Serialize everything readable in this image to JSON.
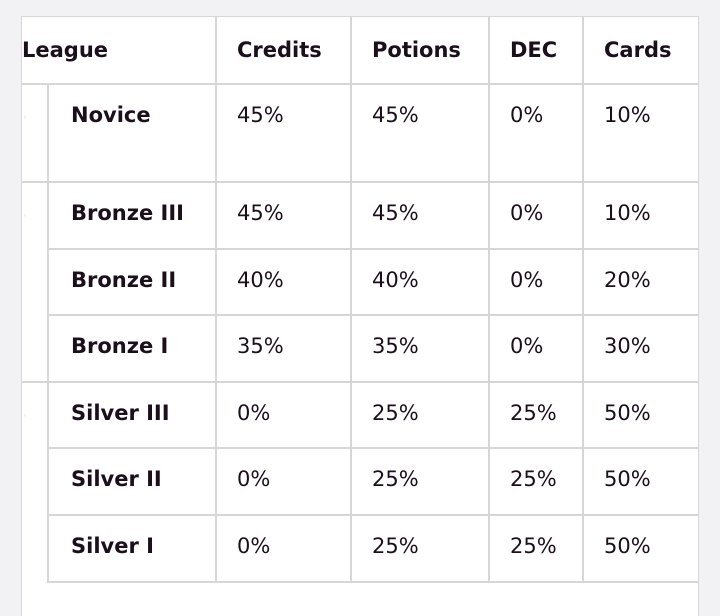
{
  "table": {
    "headers": {
      "league": "League",
      "credits": "Credits",
      "potions": "Potions",
      "dec": "DEC",
      "cards": "Cards"
    },
    "rows": [
      {
        "league": "Novice",
        "credits": "45%",
        "potions": "45%",
        "dec": "0%",
        "cards": "10%"
      },
      {
        "league": "Bronze III",
        "credits": "45%",
        "potions": "45%",
        "dec": "0%",
        "cards": "10%"
      },
      {
        "league": "Bronze II",
        "credits": "40%",
        "potions": "40%",
        "dec": "0%",
        "cards": "20%"
      },
      {
        "league": "Bronze I",
        "credits": "35%",
        "potions": "35%",
        "dec": "0%",
        "cards": "30%"
      },
      {
        "league": "Silver III",
        "credits": "0%",
        "potions": "25%",
        "dec": "25%",
        "cards": "50%"
      },
      {
        "league": "Silver II",
        "credits": "0%",
        "potions": "25%",
        "dec": "25%",
        "cards": "50%"
      },
      {
        "league": "Silver I",
        "credits": "0%",
        "potions": "25%",
        "dec": "25%",
        "cards": "50%"
      }
    ]
  }
}
